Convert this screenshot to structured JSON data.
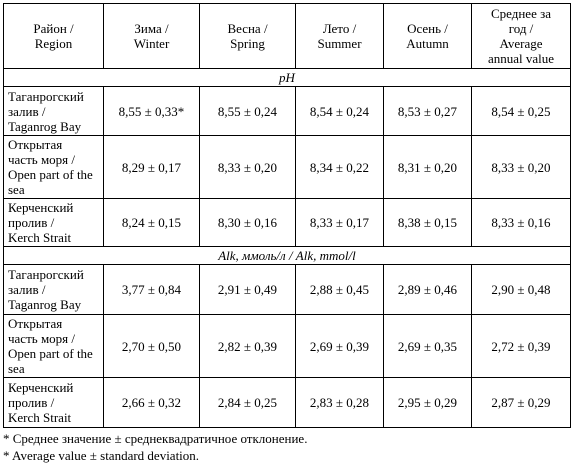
{
  "header": {
    "region": [
      "Район /",
      "Region"
    ],
    "winter": [
      "Зима /",
      "Winter"
    ],
    "spring": [
      "Весна /",
      "Spring"
    ],
    "summer": [
      "Лето /",
      "Summer"
    ],
    "autumn": [
      "Осень /",
      "Autumn"
    ],
    "annual": [
      "Среднее за",
      "год /",
      "Average",
      "annual value"
    ]
  },
  "sections": [
    {
      "title": "pH",
      "rows": [
        {
          "region": [
            "Таганрогский",
            "залив /",
            "Taganrog Bay"
          ],
          "values": [
            "8,55 ± 0,33*",
            "8,55 ± 0,24",
            "8,54 ± 0,24",
            "8,53 ± 0,27",
            "8,54 ± 0,25"
          ]
        },
        {
          "region": [
            "Открытая",
            "часть моря /",
            "Open part of the",
            "sea"
          ],
          "values": [
            "8,29 ± 0,17",
            "8,33 ± 0,20",
            "8,34 ± 0,22",
            "8,31 ± 0,20",
            "8,33 ± 0,20"
          ]
        },
        {
          "region": [
            "Керченский",
            "пролив /",
            "Kerch Strait"
          ],
          "values": [
            "8,24 ± 0,15",
            "8,30 ± 0,16",
            "8,33 ± 0,17",
            "8,38 ± 0,15",
            "8,33 ± 0,16"
          ]
        }
      ]
    },
    {
      "title": "Alk, ммоль/л / Alk, mmol/l",
      "rows": [
        {
          "region": [
            "Таганрогский",
            "залив /",
            "Taganrog Bay"
          ],
          "values": [
            "3,77 ± 0,84",
            "2,91 ± 0,49",
            "2,88 ± 0,45",
            "2,89 ± 0,46",
            "2,90 ± 0,48"
          ]
        },
        {
          "region": [
            "Открытая",
            "часть моря /",
            "Open part of the",
            "sea"
          ],
          "values": [
            "2,70 ± 0,50",
            "2,82 ± 0,39",
            "2,69 ± 0,39",
            "2,69 ± 0,35",
            "2,72 ± 0,39"
          ]
        },
        {
          "region": [
            "Керченский",
            "пролив /",
            "Kerch Strait"
          ],
          "values": [
            "2,66 ± 0,32",
            "2,84 ± 0,25",
            "2,83 ± 0,28",
            "2,95 ± 0,29",
            "2,87 ± 0,29"
          ]
        }
      ]
    }
  ],
  "footnotes": [
    "* Среднее значение ± среднеквадратичное отклонение.",
    "* Average value ± standard deviation."
  ]
}
